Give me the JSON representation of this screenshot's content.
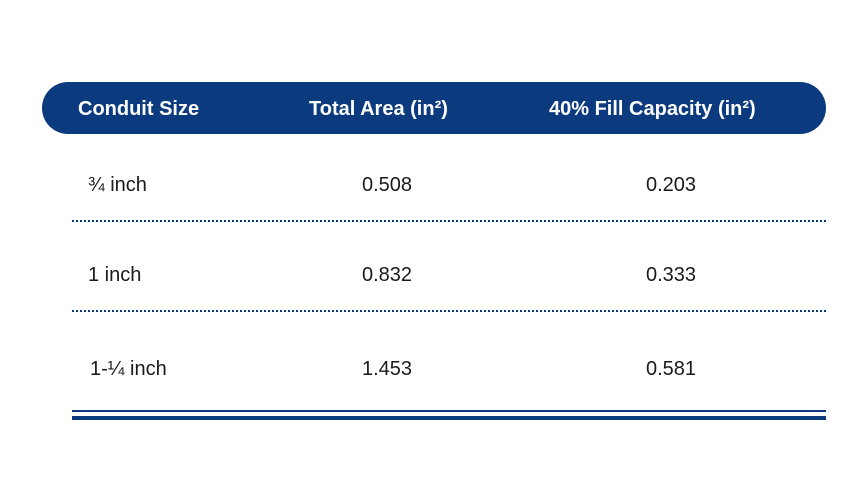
{
  "table": {
    "headers": [
      "Conduit Size",
      "Total Area (in²)",
      "40% Fill Capacity (in²)"
    ],
    "rows": [
      [
        "¾ inch",
        "0.508",
        "0.203"
      ],
      [
        "1 inch",
        "0.832",
        "0.333"
      ],
      [
        "1-¼ inch",
        "1.453",
        "0.581"
      ]
    ]
  },
  "colors": {
    "header_bg": "#0b3a7e",
    "header_text": "#ffffff",
    "divider": "#0b3a7e",
    "body_text": "#1a1a1a"
  }
}
